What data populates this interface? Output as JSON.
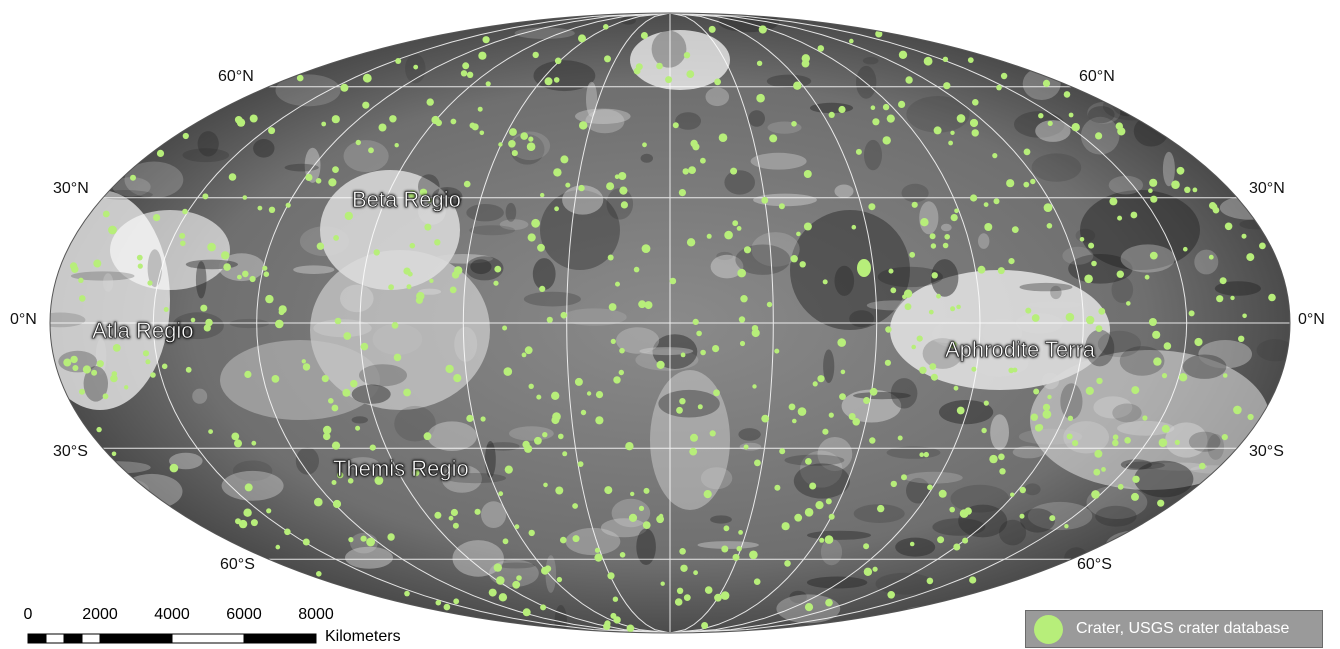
{
  "latitude_labels": {
    "n60_left": "60°N",
    "n60_right": "60°N",
    "n30_left": "30°N",
    "n30_right": "30°N",
    "eq_left": "0°N",
    "eq_right": "0°N",
    "s30_left": "30°S",
    "s30_right": "30°S",
    "s60_left": "60°S",
    "s60_right": "60°S"
  },
  "regions": {
    "beta": "Beta Regio",
    "atla": "Atla Regio",
    "aphrodite": "Aphrodite Terra",
    "themis": "Themis Regio"
  },
  "scale_bar": {
    "ticks": [
      "0",
      "2000",
      "4000",
      "6000",
      "8000"
    ],
    "unit": "Kilometers"
  },
  "legend": {
    "label": "Crater, USGS crater database",
    "color": "#b7ee7a"
  },
  "colors": {
    "crater": "#b7ee7a",
    "graticule": "#ffffff"
  }
}
